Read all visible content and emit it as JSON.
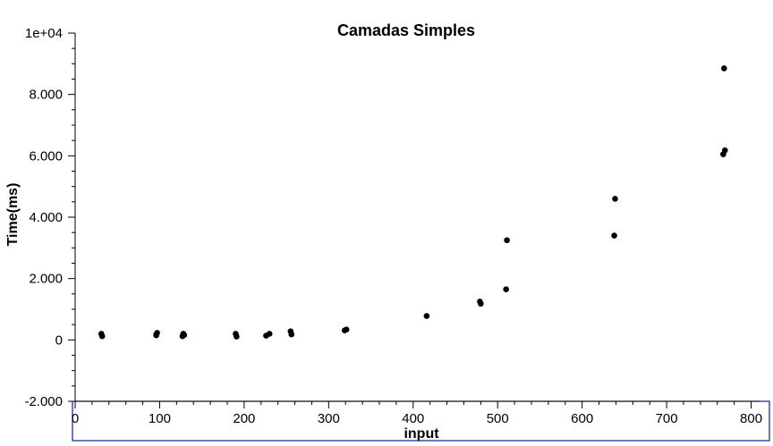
{
  "chart_data": {
    "type": "scatter",
    "title": "Camadas Simples",
    "xlabel": "input",
    "ylabel": "Time(ms)",
    "xlim": [
      0,
      810
    ],
    "ylim": [
      -2000,
      10000
    ],
    "x_ticks": [
      0,
      100,
      200,
      300,
      400,
      500,
      600,
      700,
      800
    ],
    "x_tick_labels": [
      "0",
      "100",
      "200",
      "300",
      "400",
      "500",
      "600",
      "700",
      "800"
    ],
    "y_ticks": [
      -2000,
      0,
      2000,
      4000,
      6000,
      8000,
      10000
    ],
    "y_tick_labels": [
      "-2.000",
      "0",
      "2.000",
      "4.000",
      "6.000",
      "8.000",
      "1e+04"
    ],
    "grid": false,
    "point_color": "#000000",
    "frame_color": "#1a1a8c",
    "x": [
      31,
      32,
      96,
      97,
      96,
      127,
      128,
      129,
      190,
      191,
      226,
      230,
      255,
      256,
      319,
      321,
      416,
      479,
      480,
      510,
      511,
      638,
      639,
      767,
      768,
      769
    ],
    "y": [
      200,
      120,
      150,
      230,
      180,
      120,
      200,
      160,
      200,
      110,
      140,
      200,
      280,
      180,
      310,
      340,
      780,
      1250,
      1180,
      1650,
      3250,
      3400,
      4600,
      6050,
      8850,
      6180
    ]
  }
}
